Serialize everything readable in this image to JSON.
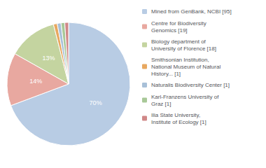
{
  "chart_data": {
    "type": "pie",
    "categories": [
      "Mined from GenBank, NCBI [95]",
      "Centre for Biodiversity\nGenomics [19]",
      "Biology department of\nUniversity of Florence [18]",
      "Smithsonian Institution,\nNational Museum of Natural\nHistory... [1]",
      "Naturalis Biodiversity Center [1]",
      "Karl-Franzens University of\nGraz [1]",
      "Ilia State University,\nInstitute of Ecology [1]"
    ],
    "values": [
      70,
      14,
      13,
      1,
      1,
      1,
      1
    ],
    "value_labels": [
      "70%",
      "14%",
      "13%",
      null,
      null,
      null,
      null
    ],
    "colors": [
      "#b8cce4",
      "#e8a8a0",
      "#c4d4a0",
      "#e8a860",
      "#a8c0d8",
      "#a8c898",
      "#d08888"
    ],
    "data_labels": true,
    "legend": "upper right"
  }
}
